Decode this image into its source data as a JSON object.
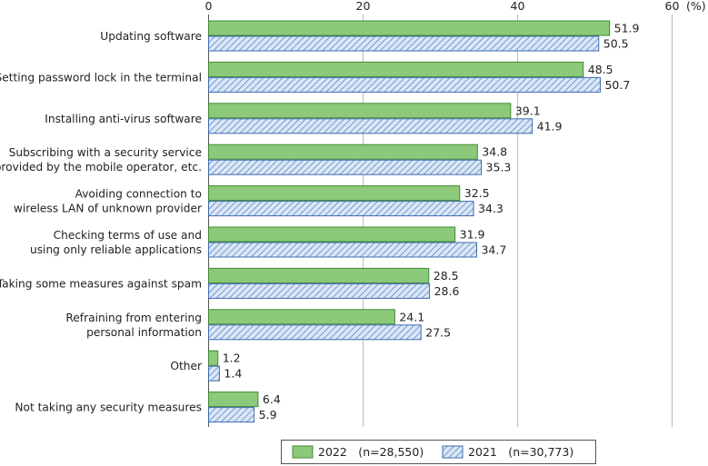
{
  "chart_data": {
    "type": "bar",
    "orientation": "horizontal",
    "unit": "(%)",
    "xlim": [
      0,
      60
    ],
    "xticks": [
      0,
      20,
      40,
      60
    ],
    "grid": true,
    "legend_position": "bottom-right",
    "categories": [
      [
        "Updating software"
      ],
      [
        "Setting password lock in the terminal"
      ],
      [
        "Installing anti-virus software"
      ],
      [
        "Subscribing with a security service",
        "provided by the mobile operator, etc."
      ],
      [
        "Avoiding connection to",
        "wireless LAN of unknown provider"
      ],
      [
        "Checking terms of use and",
        "using only reliable applications"
      ],
      [
        "Taking some measures against spam"
      ],
      [
        "Refraining from entering",
        "personal information"
      ],
      [
        "Other"
      ],
      [
        "Not taking any security measures"
      ]
    ],
    "series": [
      {
        "name": "2022　(n=28,550)",
        "color": "#8dc97a",
        "pattern": "solid",
        "values": [
          51.9,
          48.5,
          39.1,
          34.8,
          32.5,
          31.9,
          28.5,
          24.1,
          1.2,
          6.4
        ]
      },
      {
        "name": "2021　(n=30,773)",
        "color": "#c9dcf2",
        "pattern": "diagonal-hatch",
        "hatch_color": "#5b86c4",
        "values": [
          50.5,
          50.7,
          41.9,
          35.3,
          34.3,
          34.7,
          28.6,
          27.5,
          1.4,
          5.9
        ]
      }
    ]
  }
}
